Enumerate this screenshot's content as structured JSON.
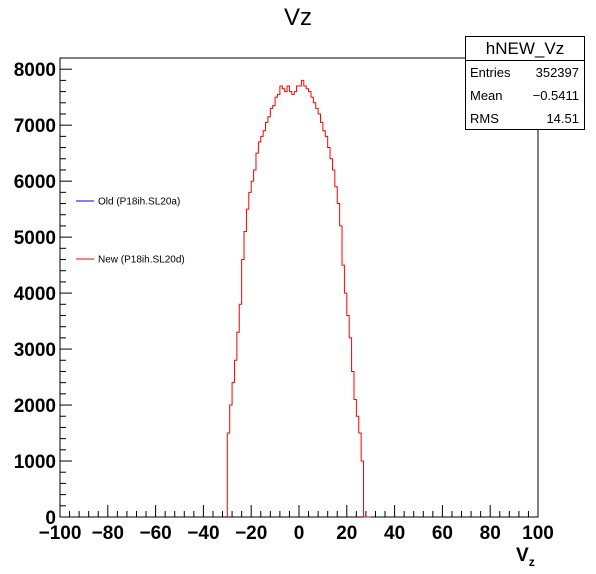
{
  "chart_data": {
    "type": "histogram",
    "title": "Vz",
    "xlabel": "V",
    "xlabel_sub": "z",
    "xlim": [
      -100,
      100
    ],
    "ylim": [
      0,
      8200
    ],
    "xticks": [
      -100,
      -80,
      -60,
      -40,
      -20,
      0,
      20,
      40,
      60,
      80,
      100
    ],
    "xtick_labels": [
      "−100",
      "−80",
      "−60",
      "−40",
      "−20",
      "0",
      "20",
      "40",
      "60",
      "80",
      "100"
    ],
    "yticks": [
      0,
      1000,
      2000,
      3000,
      4000,
      5000,
      6000,
      7000,
      8000
    ],
    "ytick_labels": [
      "0",
      "1000",
      "2000",
      "3000",
      "4000",
      "5000",
      "6000",
      "7000",
      "8000"
    ],
    "bin_width": 1,
    "legend": [
      {
        "name": "Old (P18ih.SL20a)",
        "color": "#0000ff"
      },
      {
        "name": "New (P18ih.SL20d)",
        "color": "#ff0000"
      }
    ],
    "series": [
      {
        "name": "New (P18ih.SL20d)",
        "color": "#ff0000",
        "bin_edges_start": -30,
        "values": [
          1500,
          2000,
          2400,
          2800,
          3300,
          3800,
          4600,
          5100,
          5500,
          5800,
          6000,
          6200,
          6500,
          6700,
          6800,
          6900,
          7050,
          7150,
          7300,
          7350,
          7500,
          7550,
          7700,
          7650,
          7600,
          7700,
          7600,
          7550,
          7600,
          7700,
          7700,
          7800,
          7700,
          7650,
          7600,
          7500,
          7400,
          7300,
          7200,
          7050,
          6900,
          6800,
          6600,
          6400,
          6200,
          5900,
          5600,
          5200,
          4500,
          4000,
          3600,
          3200,
          2600,
          2100,
          1800,
          1500,
          1000,
          0,
          0,
          0
        ]
      }
    ]
  },
  "stats": {
    "name": "hNEW_Vz",
    "rows": [
      {
        "key": "Entries",
        "value": "352397"
      },
      {
        "key": "Mean",
        "value": "−0.5411"
      },
      {
        "key": "RMS",
        "value": "14.51"
      }
    ]
  }
}
